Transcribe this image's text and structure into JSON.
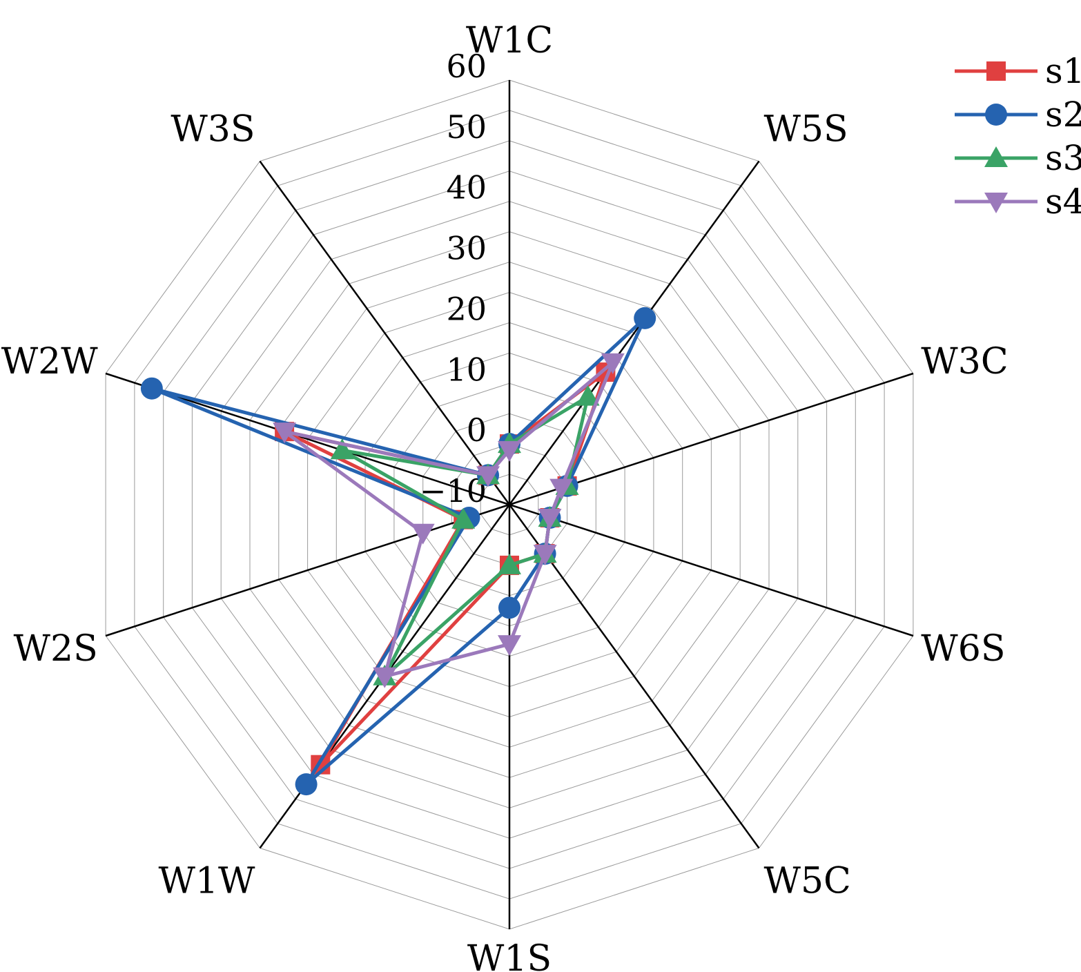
{
  "chart_data": {
    "type": "radar",
    "categories": [
      "W1C",
      "W5S",
      "W3C",
      "W6S",
      "W5C",
      "W1S",
      "W1W",
      "W2S",
      "W2W",
      "W3S"
    ],
    "r_ticks": [
      -10,
      0,
      10,
      20,
      30,
      40,
      50,
      60
    ],
    "rlim": [
      -10,
      60
    ],
    "grid": true,
    "legend_position": "top-right",
    "series": [
      {
        "name": "s1",
        "color": "#e04040",
        "marker": "square",
        "values": [
          0,
          17,
          0,
          -3,
          0,
          0,
          43,
          -2,
          29,
          -4
        ]
      },
      {
        "name": "s2",
        "color": "#2563b0",
        "marker": "circle",
        "values": [
          0,
          28,
          0,
          -3,
          0,
          7,
          47,
          -3,
          52,
          -4
        ]
      },
      {
        "name": "s3",
        "color": "#3aa366",
        "marker": "triangle-up",
        "values": [
          0,
          12,
          0,
          -3,
          0,
          0,
          25,
          -2,
          19,
          -4
        ]
      },
      {
        "name": "s4",
        "color": "#9b79bb",
        "marker": "triangle-down",
        "values": [
          -1,
          19,
          -1,
          -3,
          0,
          13,
          25,
          5,
          29,
          -4
        ]
      }
    ]
  }
}
